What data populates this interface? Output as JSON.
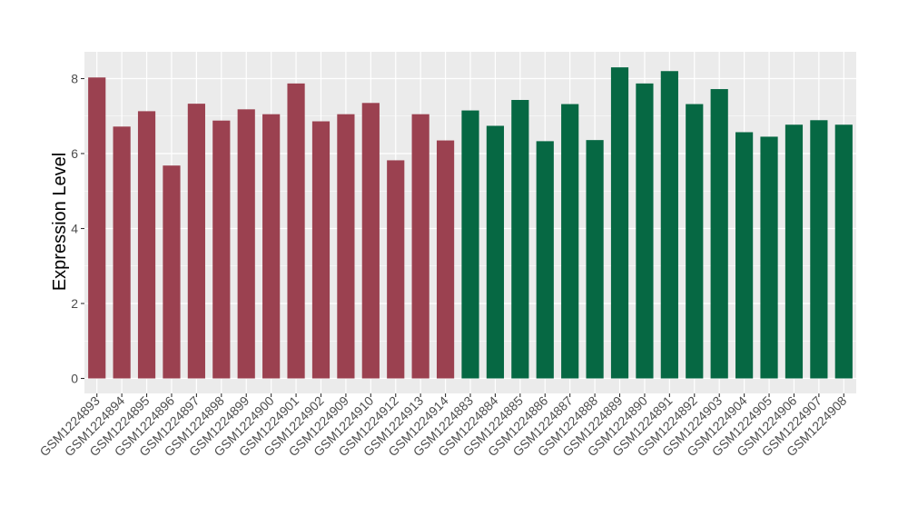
{
  "chart_data": {
    "type": "bar",
    "xlabel": "",
    "ylabel": "Expression Level",
    "ylim": [
      0,
      8.7
    ],
    "yticks": [
      0,
      2,
      4,
      6,
      8
    ],
    "grid": true,
    "background": "#ebebeb",
    "gridline_color": "#ffffff",
    "group_colors": [
      "#9b4150",
      "#066843"
    ],
    "categories": [
      "GSM1224893",
      "GSM1224894",
      "GSM1224895",
      "GSM1224896",
      "GSM1224897",
      "GSM1224898",
      "GSM1224899",
      "GSM1224900",
      "GSM1224901",
      "GSM1224902",
      "GSM1224909",
      "GSM1224910",
      "GSM1224912",
      "GSM1224913",
      "GSM1224914",
      "GSM1224883",
      "GSM1224884",
      "GSM1224885",
      "GSM1224886",
      "GSM1224887",
      "GSM1224888",
      "GSM1224889",
      "GSM1224890",
      "GSM1224891",
      "GSM1224892",
      "GSM1224903",
      "GSM1224904",
      "GSM1224905",
      "GSM1224906",
      "GSM1224907",
      "GSM1224908"
    ],
    "values": [
      8.03,
      6.72,
      7.13,
      5.68,
      7.33,
      6.88,
      7.18,
      7.05,
      7.87,
      6.86,
      7.05,
      7.35,
      5.82,
      7.05,
      6.35,
      7.15,
      6.74,
      7.43,
      6.33,
      7.32,
      6.36,
      8.3,
      7.87,
      8.2,
      7.32,
      7.72,
      6.57,
      6.45,
      6.77,
      6.89,
      6.77
    ],
    "groups": [
      0,
      0,
      0,
      0,
      0,
      0,
      0,
      0,
      0,
      0,
      0,
      0,
      0,
      0,
      0,
      1,
      1,
      1,
      1,
      1,
      1,
      1,
      1,
      1,
      1,
      1,
      1,
      1,
      1,
      1,
      1
    ]
  }
}
